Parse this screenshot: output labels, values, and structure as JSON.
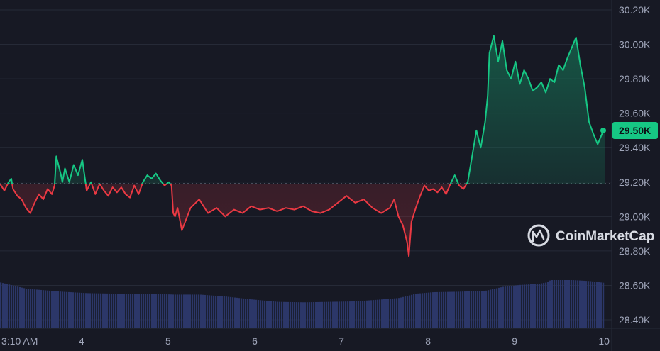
{
  "brand": {
    "name": "CoinMarketCap"
  },
  "colors": {
    "background": "#171924",
    "grid": "#262a37",
    "up": "#16c784",
    "down": "#ea3943",
    "volume": "#2c3769",
    "baseline": "#a1a7bb",
    "badge_text": "#0d1117"
  },
  "chart_data": {
    "type": "line",
    "title": "",
    "y_axis_position": "right",
    "ylim": [
      28.35,
      30.25
    ],
    "yticks": [
      "30.20K",
      "30.00K",
      "29.80K",
      "29.60K",
      "29.40K",
      "29.20K",
      "29.00K",
      "28.80K",
      "28.60K",
      "28.40K"
    ],
    "ytick_values": [
      30.2,
      30.0,
      29.8,
      29.6,
      29.4,
      29.2,
      29.0,
      28.8,
      28.6,
      28.4
    ],
    "xlim": [
      0,
      6.98
    ],
    "xticks": [
      "3:10 AM",
      "4",
      "5",
      "6",
      "7",
      "8",
      "9",
      "10"
    ],
    "xtick_values": [
      0.2,
      0.95,
      1.95,
      2.95,
      3.95,
      4.95,
      5.95,
      6.95
    ],
    "baseline": 29.19,
    "current_price": "29.50K",
    "current_value": 29.5,
    "grid": true,
    "series": [
      {
        "values": {
          "x": [
            0,
            0.05,
            0.1,
            0.13,
            0.15,
            0.2,
            0.25,
            0.3,
            0.35,
            0.4,
            0.45,
            0.5,
            0.55,
            0.6,
            0.63,
            0.65,
            0.7,
            0.72,
            0.75,
            0.8,
            0.85,
            0.9,
            0.95,
            1.0,
            1.05,
            1.1,
            1.15,
            1.2,
            1.25,
            1.3,
            1.35,
            1.4,
            1.45,
            1.5,
            1.55,
            1.6,
            1.65,
            1.7,
            1.75,
            1.8,
            1.85,
            1.9,
            1.95,
            1.98,
            2.0,
            2.02,
            2.05,
            2.1,
            2.2,
            2.3,
            2.4,
            2.5,
            2.6,
            2.7,
            2.8,
            2.9,
            3.0,
            3.1,
            3.2,
            3.3,
            3.4,
            3.5,
            3.6,
            3.7,
            3.8,
            3.9,
            4.0,
            4.1,
            4.2,
            4.3,
            4.4,
            4.5,
            4.55,
            4.6,
            4.65,
            4.7,
            4.72,
            4.75,
            4.8,
            4.85,
            4.9,
            4.95,
            5.0,
            5.05,
            5.1,
            5.15,
            5.2,
            5.25,
            5.3,
            5.35,
            5.4,
            5.45,
            5.5,
            5.55,
            5.6,
            5.63,
            5.65,
            5.7,
            5.75,
            5.8,
            5.85,
            5.9,
            5.95,
            6.0,
            6.05,
            6.1,
            6.15,
            6.2,
            6.25,
            6.3,
            6.35,
            6.4,
            6.45,
            6.5,
            6.55,
            6.6,
            6.65,
            6.7,
            6.75,
            6.8,
            6.85,
            6.9,
            6.95,
            6.98
          ],
          "y": [
            29.19,
            29.15,
            29.2,
            29.22,
            29.16,
            29.12,
            29.1,
            29.05,
            29.02,
            29.08,
            29.13,
            29.1,
            29.16,
            29.13,
            29.18,
            29.35,
            29.25,
            29.2,
            29.28,
            29.2,
            29.3,
            29.24,
            29.33,
            29.15,
            29.2,
            29.13,
            29.19,
            29.15,
            29.12,
            29.17,
            29.14,
            29.17,
            29.13,
            29.11,
            29.18,
            29.13,
            29.2,
            29.24,
            29.22,
            29.25,
            29.21,
            29.18,
            29.2,
            29.18,
            29.02,
            29.0,
            29.05,
            28.92,
            29.05,
            29.1,
            29.02,
            29.05,
            29.0,
            29.04,
            29.02,
            29.06,
            29.04,
            29.05,
            29.03,
            29.05,
            29.04,
            29.06,
            29.03,
            29.02,
            29.04,
            29.08,
            29.12,
            29.08,
            29.1,
            29.05,
            29.02,
            29.05,
            29.1,
            29.0,
            28.95,
            28.85,
            28.77,
            28.97,
            29.05,
            29.12,
            29.18,
            29.15,
            29.16,
            29.14,
            29.17,
            29.13,
            29.19,
            29.24,
            29.18,
            29.16,
            29.2,
            29.35,
            29.5,
            29.4,
            29.55,
            29.7,
            29.95,
            30.05,
            29.9,
            30.02,
            29.85,
            29.8,
            29.9,
            29.77,
            29.85,
            29.8,
            29.73,
            29.75,
            29.78,
            29.72,
            29.8,
            29.78,
            29.88,
            29.85,
            29.92,
            29.98,
            30.04,
            29.88,
            29.75,
            29.55,
            29.48,
            29.42,
            29.48,
            29.5
          ]
        }
      }
    ],
    "volume": {
      "x": [
        0,
        0.3,
        0.7,
        1.0,
        1.3,
        1.7,
        2.0,
        2.3,
        2.6,
        2.9,
        3.2,
        3.5,
        3.8,
        4.1,
        4.4,
        4.6,
        4.8,
        5.0,
        5.3,
        5.6,
        5.8,
        6.0,
        6.2,
        6.3,
        6.35,
        6.6,
        6.8,
        6.98
      ],
      "values": [
        0.95,
        0.82,
        0.76,
        0.73,
        0.72,
        0.72,
        0.7,
        0.7,
        0.66,
        0.6,
        0.55,
        0.54,
        0.55,
        0.56,
        0.6,
        0.63,
        0.72,
        0.75,
        0.76,
        0.78,
        0.86,
        0.9,
        0.92,
        0.95,
        1.0,
        1.0,
        0.98,
        0.94
      ]
    }
  }
}
